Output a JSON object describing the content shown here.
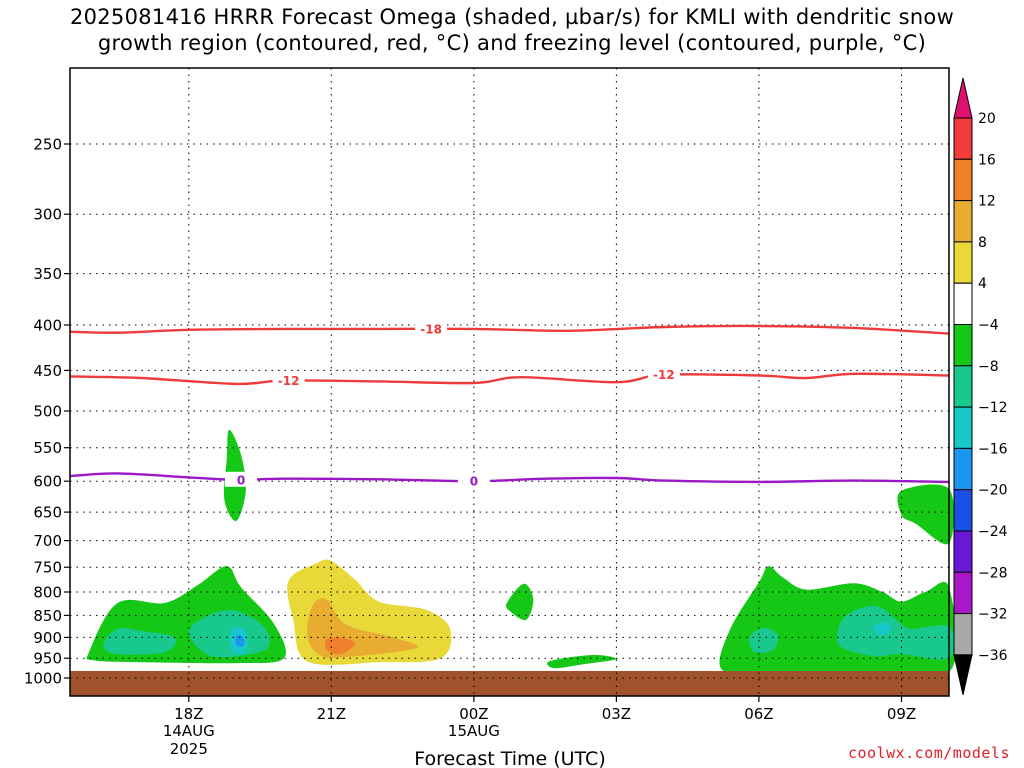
{
  "title": "2025081416 HRRR Forecast Omega (shaded, µbar/s) for KMLI with dendritic snow\ngrowth region (contoured, red, °C) and freezing level (contoured, purple, °C)",
  "credit": "coolwx.com/models",
  "chart_data": {
    "type": "time-height cross section",
    "xlabel": "Forecast Time (UTC)",
    "ylabel": "",
    "x_range_hours": [
      15.5,
      34.0
    ],
    "y_range_mb": [
      200,
      1020
    ],
    "y_scale": "log-pressure (inverted)",
    "grid": "dotted",
    "x_ticks": [
      {
        "hour": 18,
        "label": "18Z",
        "date": "14AUG",
        "year": "2025"
      },
      {
        "hour": 21,
        "label": "21Z",
        "date": "",
        "year": ""
      },
      {
        "hour": 24,
        "label": "00Z",
        "date": "15AUG",
        "year": ""
      },
      {
        "hour": 27,
        "label": "03Z",
        "date": "",
        "year": ""
      },
      {
        "hour": 30,
        "label": "06Z",
        "date": "",
        "year": ""
      },
      {
        "hour": 33,
        "label": "09Z",
        "date": "",
        "year": ""
      }
    ],
    "y_ticks": [
      250,
      300,
      350,
      400,
      450,
      500,
      550,
      600,
      650,
      700,
      750,
      800,
      850,
      900,
      950,
      1000
    ],
    "colorbar": {
      "levels": [
        20,
        16,
        12,
        8,
        4,
        -4,
        -8,
        -12,
        -16,
        -20,
        -24,
        -28,
        -32,
        -36
      ],
      "colors": [
        "#f23c3c",
        "#f0802c",
        "#e8ac30",
        "#e8d838",
        "#ffffff",
        "#16c816",
        "#18c88c",
        "#18c8c8",
        "#1a96f0",
        "#1a50e6",
        "#6a18d8",
        "#a818c8",
        "#a8a8a8"
      ],
      "max_arrow_color": "#e0106e",
      "min_arrow_color": "#000000"
    },
    "contours": [
      {
        "name": "",
        "value": "-18",
        "color": "#ee3a3a",
        "points": [
          [
            15.5,
            407
          ],
          [
            16.5,
            408
          ],
          [
            18,
            405
          ],
          [
            20,
            404
          ],
          [
            22,
            404
          ],
          [
            24,
            404
          ],
          [
            26,
            406
          ],
          [
            28,
            402
          ],
          [
            30,
            401
          ],
          [
            32,
            403
          ],
          [
            34,
            409
          ]
        ],
        "label_hours": [
          23.1
        ]
      },
      {
        "name": "",
        "value": "-12",
        "color": "#ee3a3a",
        "points": [
          [
            15.5,
            457
          ],
          [
            17,
            459
          ],
          [
            19,
            466
          ],
          [
            20,
            462
          ],
          [
            22,
            463
          ],
          [
            24,
            465
          ],
          [
            25,
            458
          ],
          [
            27,
            464
          ],
          [
            28,
            455
          ],
          [
            30,
            456
          ],
          [
            31,
            459
          ],
          [
            32,
            454
          ],
          [
            34,
            456
          ]
        ],
        "label_hours": [
          20.1,
          28.0
        ]
      },
      {
        "name": "",
        "value": "0",
        "color": "#9a18c8",
        "points": [
          [
            15.5,
            592
          ],
          [
            16.5,
            588
          ],
          [
            18,
            594
          ],
          [
            19,
            598
          ],
          [
            20,
            596
          ],
          [
            22,
            597
          ],
          [
            24,
            600
          ],
          [
            25.5,
            596
          ],
          [
            27,
            595
          ],
          [
            28,
            599
          ],
          [
            30,
            601
          ],
          [
            32,
            599
          ],
          [
            34,
            601
          ]
        ],
        "label_hours": [
          19.1,
          24.0
        ]
      }
    ],
    "shaded_regions": [
      {
        "level": -4,
        "points": [
          [
            15.9,
            935
          ],
          [
            16.5,
            823
          ],
          [
            17.5,
            823
          ],
          [
            18.2,
            785
          ],
          [
            18.8,
            748
          ],
          [
            19.1,
            790
          ],
          [
            19.8,
            870
          ],
          [
            20,
            950
          ],
          [
            19,
            962
          ],
          [
            17,
            960
          ],
          [
            16,
            955
          ]
        ]
      },
      {
        "level": -8,
        "points": [
          [
            16.2,
            918
          ],
          [
            16.5,
            880
          ],
          [
            17,
            885
          ],
          [
            17.7,
            900
          ],
          [
            17.5,
            935
          ],
          [
            16.5,
            940
          ]
        ]
      },
      {
        "level": -8,
        "points": [
          [
            18,
            890
          ],
          [
            18.4,
            850
          ],
          [
            19,
            840
          ],
          [
            19.6,
            878
          ],
          [
            19.6,
            930
          ],
          [
            18.5,
            945
          ]
        ]
      },
      {
        "level": -12,
        "points": [
          [
            18.9,
            880
          ],
          [
            19.2,
            885
          ],
          [
            19.2,
            935
          ],
          [
            18.9,
            930
          ]
        ]
      },
      {
        "level": -16,
        "points": [
          [
            19,
            895
          ],
          [
            19.15,
            900
          ],
          [
            19.15,
            920
          ],
          [
            19,
            918
          ]
        ]
      },
      {
        "level": -4,
        "points": [
          [
            18.85,
            525
          ],
          [
            19.1,
            560
          ],
          [
            19.2,
            615
          ],
          [
            19,
            665
          ],
          [
            18.75,
            630
          ],
          [
            18.8,
            565
          ]
        ]
      },
      {
        "level": -4,
        "points": [
          [
            24.7,
            822
          ],
          [
            25.05,
            783
          ],
          [
            25.25,
            815
          ],
          [
            25.1,
            860
          ],
          [
            24.75,
            840
          ]
        ]
      },
      {
        "level": -4,
        "points": [
          [
            25.6,
            957
          ],
          [
            26.5,
            942
          ],
          [
            27,
            952
          ],
          [
            26.3,
            965
          ],
          [
            25.7,
            975
          ]
        ]
      },
      {
        "level": 4,
        "points": [
          [
            20.1,
            777
          ],
          [
            20.7,
            742
          ],
          [
            21,
            738
          ],
          [
            21.5,
            775
          ],
          [
            22,
            820
          ],
          [
            23,
            838
          ],
          [
            23.5,
            880
          ],
          [
            23.3,
            950
          ],
          [
            22,
            960
          ],
          [
            20.5,
            958
          ],
          [
            20.2,
            860
          ]
        ]
      },
      {
        "level": 8,
        "points": [
          [
            20.6,
            830
          ],
          [
            20.9,
            815
          ],
          [
            21.3,
            870
          ],
          [
            22.3,
            900
          ],
          [
            22.8,
            925
          ],
          [
            21.5,
            945
          ],
          [
            20.8,
            945
          ],
          [
            20.5,
            900
          ]
        ]
      },
      {
        "level": 12,
        "points": [
          [
            20.9,
            905
          ],
          [
            21.2,
            900
          ],
          [
            21.5,
            915
          ],
          [
            21.2,
            940
          ],
          [
            20.9,
            930
          ]
        ]
      },
      {
        "level": -4,
        "points": [
          [
            29.4,
            880
          ],
          [
            30,
            780
          ],
          [
            30.2,
            748
          ],
          [
            30.5,
            770
          ],
          [
            31,
            795
          ],
          [
            32,
            782
          ],
          [
            32.6,
            800
          ],
          [
            33,
            820
          ],
          [
            33.5,
            800
          ],
          [
            34,
            790
          ],
          [
            34,
            985
          ],
          [
            32,
            990
          ],
          [
            30,
            990
          ],
          [
            29.2,
            975
          ]
        ]
      },
      {
        "level": -8,
        "points": [
          [
            29.8,
            900
          ],
          [
            30.1,
            878
          ],
          [
            30.4,
            895
          ],
          [
            30.3,
            930
          ],
          [
            29.9,
            935
          ]
        ]
      },
      {
        "level": -8,
        "points": [
          [
            31.7,
            870
          ],
          [
            32,
            840
          ],
          [
            32.5,
            830
          ],
          [
            32.9,
            860
          ],
          [
            33.2,
            880
          ],
          [
            34,
            875
          ],
          [
            34,
            950
          ],
          [
            33,
            940
          ],
          [
            32.4,
            945
          ],
          [
            31.7,
            920
          ]
        ]
      },
      {
        "level": -12,
        "points": [
          [
            32.4,
            880
          ],
          [
            32.6,
            865
          ],
          [
            32.8,
            878
          ],
          [
            32.6,
            895
          ]
        ]
      },
      {
        "level": -4,
        "points": [
          [
            33,
            615
          ],
          [
            34,
            612
          ],
          [
            34,
            705
          ],
          [
            33.3,
            670
          ],
          [
            33,
            655
          ]
        ]
      }
    ],
    "ground_mb": 982
  }
}
